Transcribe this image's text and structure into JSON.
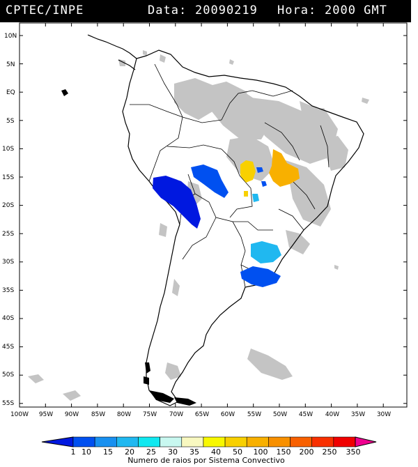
{
  "header": {
    "source": "CPTEC/INPE",
    "date_label": "Data:",
    "date": "20090219",
    "hour_label": "Hora:",
    "hour": "2000 GMT"
  },
  "map": {
    "lat_ticks": [
      "10N",
      "5N",
      "EQ",
      "5S",
      "10S",
      "15S",
      "20S",
      "25S",
      "30S",
      "35S",
      "40S",
      "45S",
      "50S",
      "55S"
    ],
    "lon_ticks": [
      "100W",
      "95W",
      "90W",
      "85W",
      "80W",
      "75W",
      "70W",
      "65W",
      "60W",
      "55W",
      "50W",
      "45W",
      "40W",
      "35W",
      "30W"
    ]
  },
  "legend": {
    "title": "Numero de raios por Sistema Convectivo",
    "labels": [
      "1",
      "10",
      "15",
      "20",
      "25",
      "30",
      "35",
      "40",
      "50",
      "100",
      "150",
      "200",
      "250",
      "350"
    ],
    "colors": [
      "#0018e0",
      "#0050f0",
      "#1890f0",
      "#20b8f0",
      "#10e8f0",
      "#c8f8f0",
      "#f8f8c0",
      "#f8f800",
      "#f8d000",
      "#f8b000",
      "#f89000",
      "#f86000",
      "#f83000",
      "#f00000",
      "#f00090"
    ]
  }
}
